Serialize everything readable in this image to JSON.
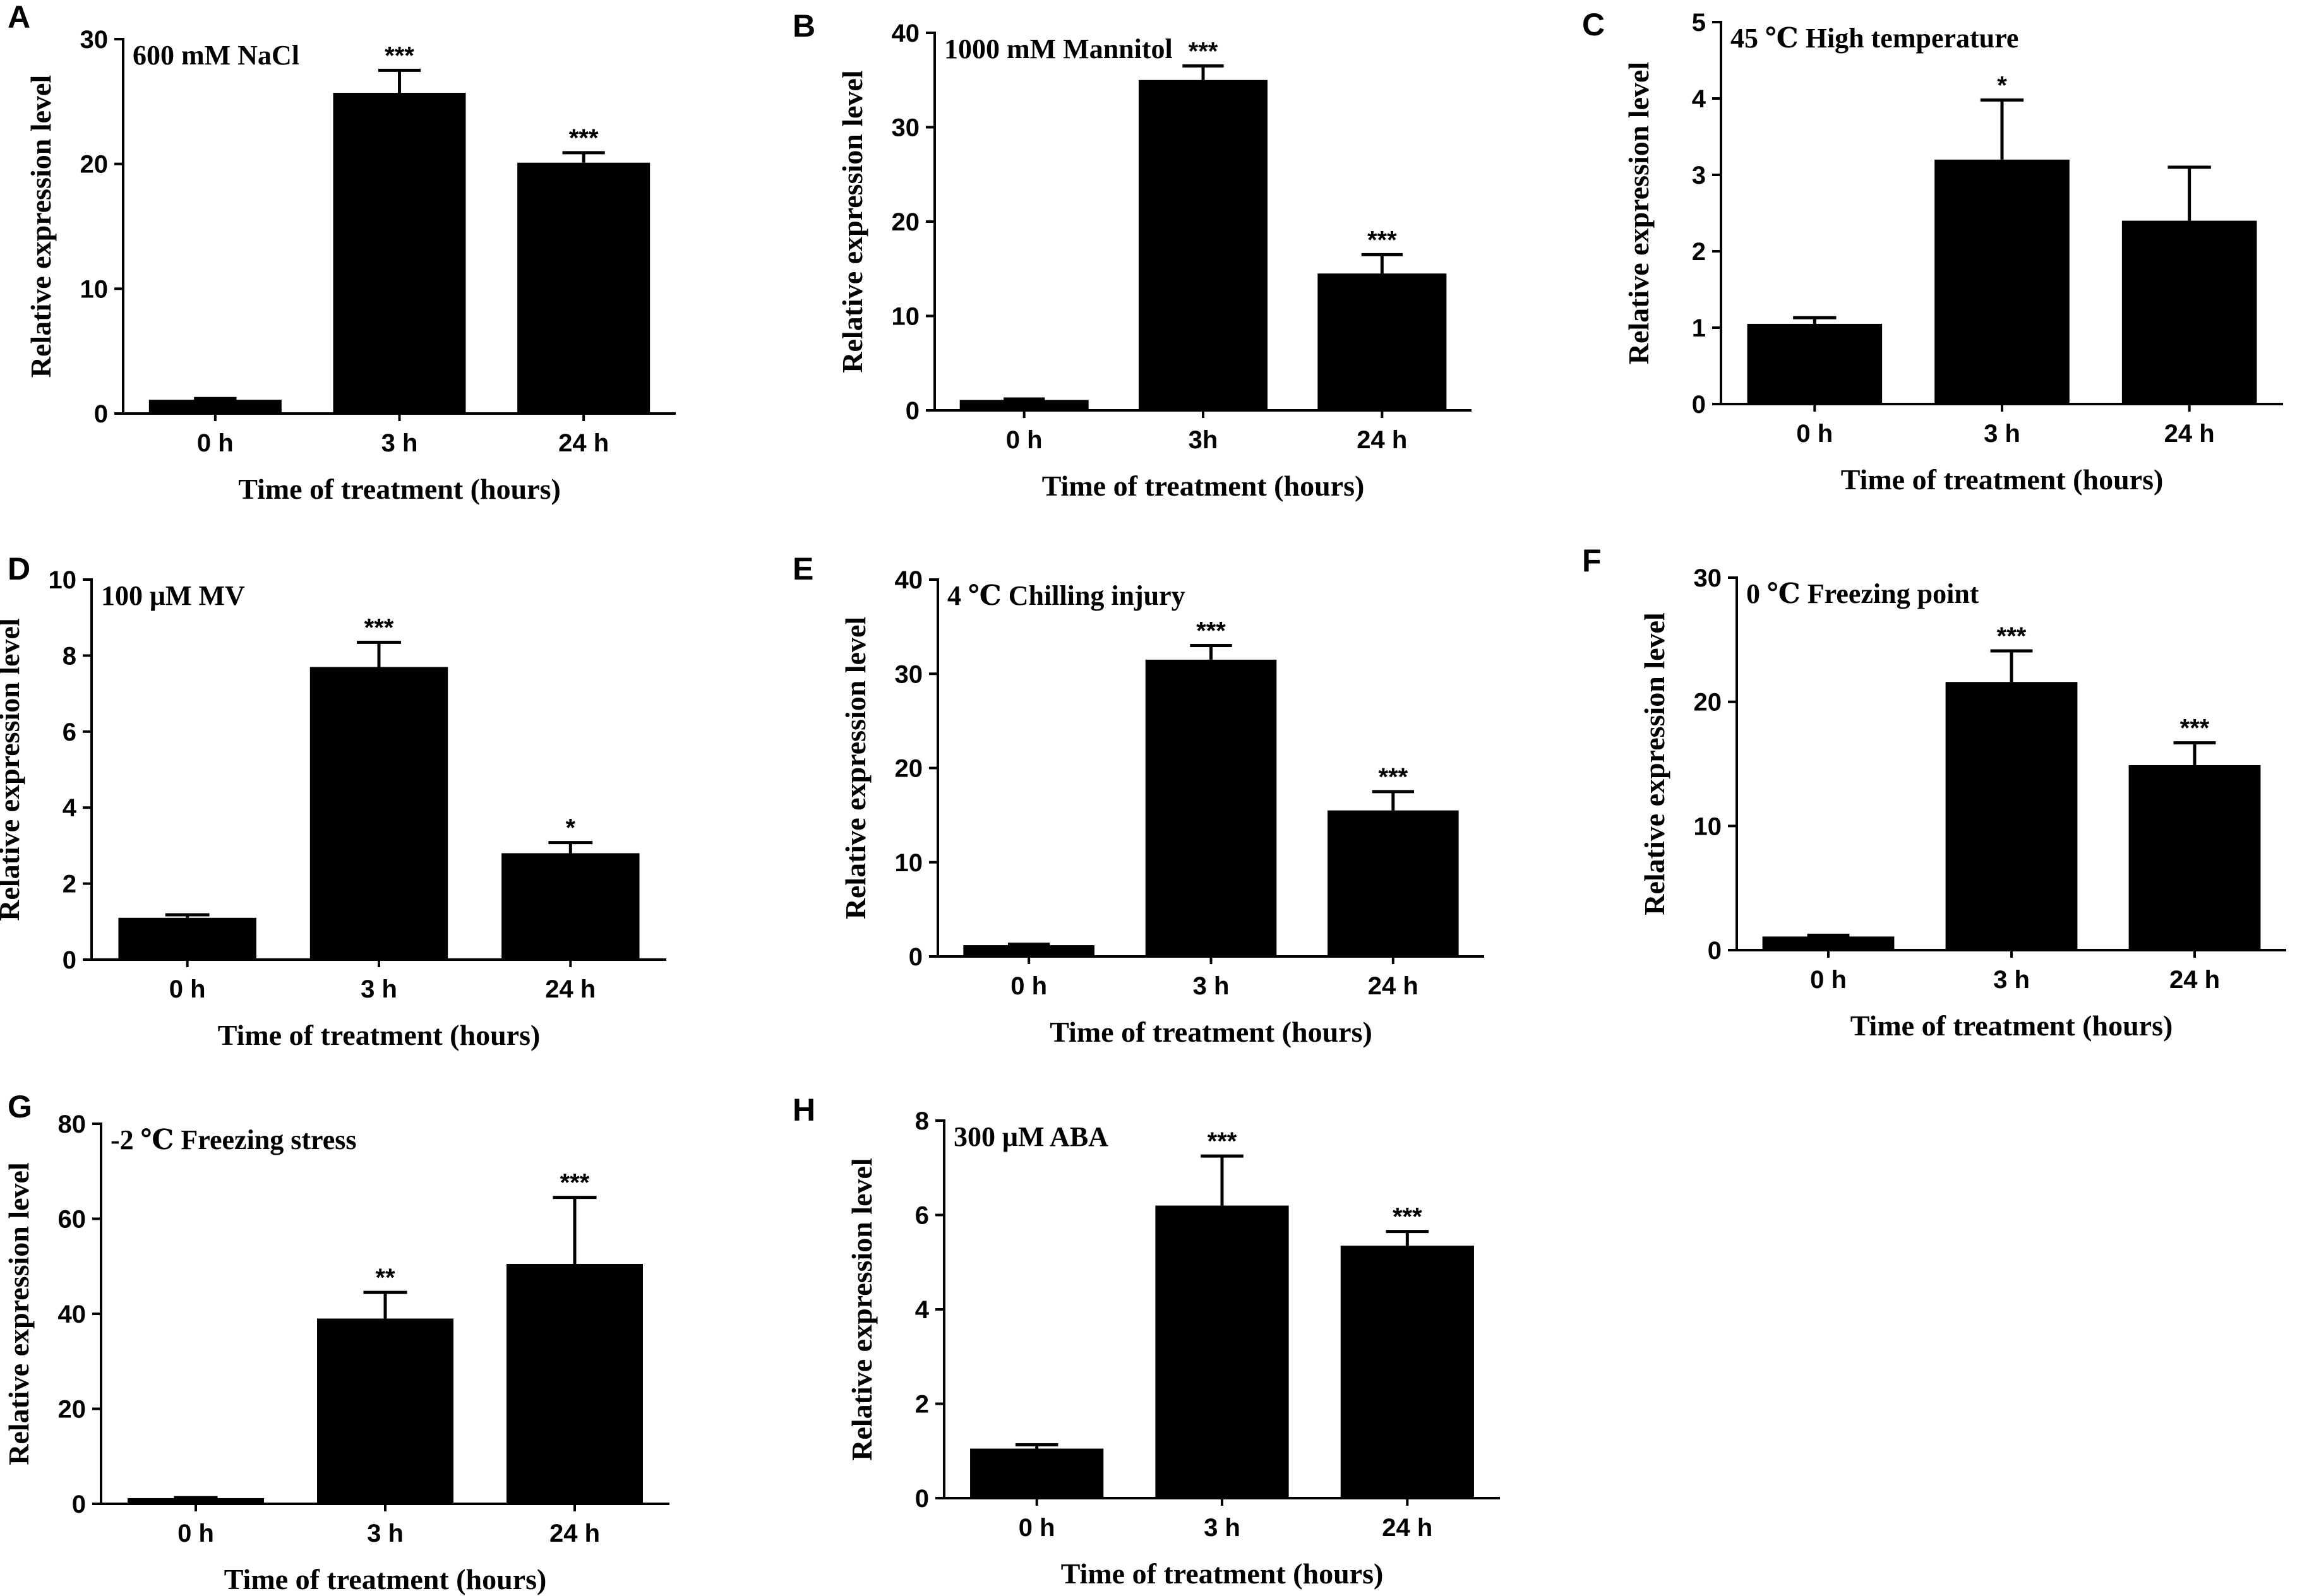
{
  "figure": {
    "bar_color": "#000000",
    "background": "#ffffff"
  },
  "chart_data": [
    {
      "panel": "A",
      "type": "bar",
      "title": "600  mM NaCl",
      "xlabel": "Time of treatment (hours)",
      "ylabel": "Relative expression level",
      "categories": [
        "0 h",
        "3 h",
        "24 h"
      ],
      "values": [
        1.1,
        25.7,
        20.1
      ],
      "errors": [
        0.1,
        1.8,
        0.8
      ],
      "significance": [
        "",
        "***",
        "***"
      ],
      "ylim": [
        0,
        30
      ],
      "yticks": [
        0,
        10,
        20,
        30
      ]
    },
    {
      "panel": "B",
      "type": "bar",
      "title": "1000  mM Mannitol",
      "xlabel": "Time of treatment (hours)",
      "ylabel": "Relative expression level",
      "categories": [
        "0 h",
        "3h",
        "24 h"
      ],
      "values": [
        1.1,
        35.0,
        14.5
      ],
      "errors": [
        0.1,
        1.5,
        2.0
      ],
      "significance": [
        "",
        "***",
        "***"
      ],
      "ylim": [
        0,
        40
      ],
      "yticks": [
        0,
        10,
        20,
        30,
        40
      ]
    },
    {
      "panel": "C",
      "type": "bar",
      "title": "45 ℃ High temperature",
      "xlabel": "Time of treatment (hours)",
      "ylabel": "Relative expression level",
      "categories": [
        "0 h",
        "3 h",
        "24 h"
      ],
      "values": [
        1.05,
        3.2,
        2.4
      ],
      "errors": [
        0.08,
        0.78,
        0.7
      ],
      "significance": [
        "",
        "*",
        ""
      ],
      "ylim": [
        0,
        5
      ],
      "yticks": [
        0,
        1,
        2,
        3,
        4,
        5
      ]
    },
    {
      "panel": "D",
      "type": "bar",
      "title": "100  μM MV",
      "xlabel": "Time of treatment (hours)",
      "ylabel": "Relative expression level",
      "categories": [
        "0 h",
        "3 h",
        "24 h"
      ],
      "values": [
        1.1,
        7.7,
        2.8
      ],
      "errors": [
        0.08,
        0.65,
        0.28
      ],
      "significance": [
        "",
        "***",
        "*"
      ],
      "ylim": [
        0,
        10
      ],
      "yticks": [
        0,
        2,
        4,
        6,
        8,
        10
      ]
    },
    {
      "panel": "E",
      "type": "bar",
      "title": "4 ℃ Chilling injury",
      "xlabel": "Time of treatment (hours)",
      "ylabel": "Relative expression level",
      "categories": [
        "0 h",
        "3 h",
        "24 h"
      ],
      "values": [
        1.2,
        31.5,
        15.5
      ],
      "errors": [
        0.1,
        1.5,
        2.0
      ],
      "significance": [
        "",
        "***",
        "***"
      ],
      "ylim": [
        0,
        40
      ],
      "yticks": [
        0,
        10,
        20,
        30,
        40
      ]
    },
    {
      "panel": "F",
      "type": "bar",
      "title": "0 ℃  Freezing point",
      "xlabel": "Time of treatment (hours)",
      "ylabel": "Relative expression level",
      "categories": [
        "0 h",
        "3 h",
        "24 h"
      ],
      "values": [
        1.1,
        21.6,
        14.9
      ],
      "errors": [
        0.1,
        2.5,
        1.8
      ],
      "significance": [
        "",
        "***",
        "***"
      ],
      "ylim": [
        0,
        30
      ],
      "yticks": [
        0,
        10,
        20,
        30
      ]
    },
    {
      "panel": "G",
      "type": "bar",
      "title": "-2 ℃ Freezing stress",
      "xlabel": "Time of treatment (hours)",
      "ylabel": "Relative expression level",
      "categories": [
        "0 h",
        "3 h",
        "24 h"
      ],
      "values": [
        1.2,
        39.0,
        50.5
      ],
      "errors": [
        0.1,
        5.5,
        14.0
      ],
      "significance": [
        "",
        "**",
        "***"
      ],
      "ylim": [
        0,
        80
      ],
      "yticks": [
        0,
        20,
        40,
        60,
        80
      ]
    },
    {
      "panel": "H",
      "type": "bar",
      "title": "300  μM ABA",
      "xlabel": "Time of treatment (hours)",
      "ylabel": "Relative expression level",
      "categories": [
        "0 h",
        "3 h",
        "24 h"
      ],
      "values": [
        1.05,
        6.2,
        5.35
      ],
      "errors": [
        0.08,
        1.05,
        0.3
      ],
      "significance": [
        "",
        "***",
        "***"
      ],
      "ylim": [
        0,
        8
      ],
      "yticks": [
        0,
        2,
        4,
        6,
        8
      ]
    }
  ]
}
